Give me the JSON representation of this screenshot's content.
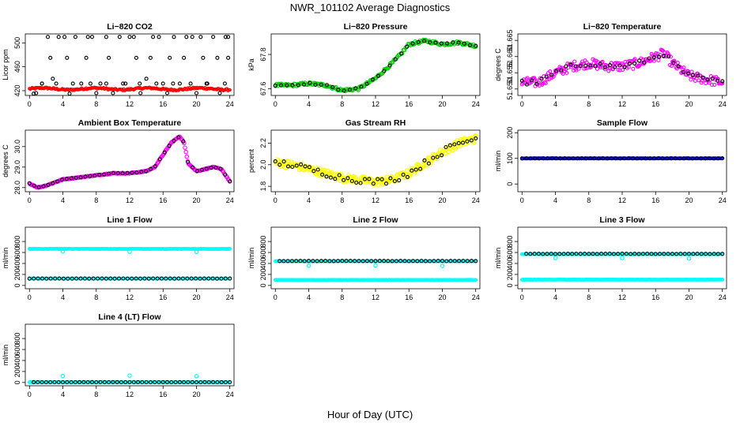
{
  "page": {
    "title": "NWR_101102  Average Diagnostics",
    "xlabel": "Hour of Day (UTC)"
  },
  "colors": {
    "black": "#000000",
    "red": "#ff0000",
    "green": "#00cc00",
    "magenta": "#ff00ff",
    "yellow": "#ffff00",
    "cyan": "#00ffff",
    "blue": "#0000ff"
  },
  "chart_data": [
    {
      "id": "li820-co2",
      "type": "scatter",
      "title": "Li−820 CO2",
      "ylabel": "Licor ppm",
      "xlim": [
        -0.5,
        24.5
      ],
      "xticks": [
        "0",
        "4",
        "8",
        "12",
        "16",
        "20",
        "24"
      ],
      "ylim": [
        412,
        515
      ],
      "yticks": [
        {
          "v": 420,
          "label": "420"
        },
        {
          "v": 460,
          "label": "460"
        },
        {
          "v": 500,
          "label": "500"
        }
      ],
      "series": [
        {
          "name": "continuous",
          "color": "#ff0000",
          "kind": "dense",
          "x0": 0,
          "x1": 24,
          "base": 423,
          "amp": 1.5,
          "noise": 1.5,
          "n": 220,
          "r": 1.6
        },
        {
          "name": "ring",
          "color": "#000000",
          "kind": "points",
          "r": 2,
          "x": [
            0.5,
            1.5,
            2.2,
            2.8,
            3.5,
            4.2,
            4.8,
            5.5,
            6.2,
            7,
            7.5,
            8,
            8.5,
            9.2,
            10,
            10.8,
            11.5,
            12,
            12.5,
            13.3,
            14,
            14.8,
            15.5,
            16,
            16.5,
            17.3,
            18,
            18.8,
            19.5,
            20,
            20.5,
            21.2,
            22,
            22.8,
            23.5,
            23.8,
            0.8,
            2.5,
            4.5,
            6.8,
            9.5,
            12.8,
            14.5,
            16.8,
            18.5,
            20.8,
            22.5,
            23.8,
            1.5,
            3.2,
            5.2,
            7.3,
            9.2,
            11.2,
            13.2,
            15.2,
            17.2,
            19.3,
            21.3,
            23.4
          ],
          "y": [
            415,
            432,
            510,
            440,
            510,
            510,
            415,
            510,
            432,
            510,
            510,
            416,
            432,
            510,
            416,
            510,
            432,
            510,
            510,
            416,
            440,
            510,
            510,
            432,
            416,
            510,
            432,
            510,
            510,
            416,
            510,
            432,
            510,
            416,
            510,
            510,
            416,
            475,
            475,
            475,
            475,
            475,
            475,
            475,
            475,
            475,
            475,
            475,
            432,
            432,
            432,
            432,
            432,
            432,
            432,
            432,
            432,
            432,
            432,
            432
          ]
        }
      ]
    },
    {
      "id": "li820-pressure",
      "type": "scatter",
      "title": "Li−820 Pressure",
      "ylabel": "kPa",
      "xlim": [
        -0.5,
        24.5
      ],
      "xticks": [
        "0",
        "4",
        "8",
        "12",
        "16",
        "20",
        "24"
      ],
      "ylim": [
        67.56,
        67.92
      ],
      "yticks": [
        {
          "v": 67.6,
          "label": "67.6"
        },
        {
          "v": 67.8,
          "label": "67.8"
        }
      ],
      "series": [
        {
          "name": "continuous",
          "color": "#00cc00",
          "kind": "curve",
          "x": [
            0,
            2,
            4,
            6,
            8,
            10,
            12,
            14,
            15,
            16,
            18,
            20,
            22,
            24
          ],
          "y": [
            67.62,
            67.62,
            67.63,
            67.62,
            67.59,
            67.6,
            67.66,
            67.75,
            67.8,
            67.86,
            67.88,
            67.86,
            67.87,
            67.85
          ],
          "n": 170,
          "noise": 0.008,
          "r": 2.2
        },
        {
          "name": "hourly",
          "color": "#000000",
          "kind": "curve",
          "x": [
            0,
            2,
            4,
            6,
            8,
            10,
            12,
            14,
            15,
            16,
            18,
            20,
            22,
            24
          ],
          "y": [
            67.62,
            67.62,
            67.63,
            67.62,
            67.59,
            67.6,
            67.66,
            67.75,
            67.8,
            67.86,
            67.88,
            67.86,
            67.87,
            67.85
          ],
          "n": 36,
          "noise": 0.004,
          "r": 2
        }
      ]
    },
    {
      "id": "li820-temperature",
      "type": "scatter",
      "title": "Li−820 Temperature",
      "ylabel": "degrees C",
      "xlim": [
        -0.5,
        24.5
      ],
      "xticks": [
        "0",
        "4",
        "8",
        "12",
        "16",
        "20",
        "24"
      ],
      "ylim": [
        51.648,
        51.667
      ],
      "yticks": [
        {
          "v": 51.65,
          "label": "51.650"
        },
        {
          "v": 51.655,
          "label": "51.655"
        },
        {
          "v": 51.66,
          "label": "51.660"
        },
        {
          "v": 51.665,
          "label": "51.665"
        }
      ],
      "series": [
        {
          "name": "continuous",
          "color": "#ff00ff",
          "kind": "curve",
          "x": [
            0,
            2,
            4,
            6,
            8,
            10,
            12,
            14,
            16,
            17,
            18,
            19,
            20,
            22,
            24
          ],
          "y": [
            51.652,
            51.652,
            51.655,
            51.657,
            51.658,
            51.657,
            51.657,
            51.658,
            51.66,
            51.661,
            51.658,
            51.656,
            51.654,
            51.653,
            51.652
          ],
          "n": 230,
          "noise": 0.0015,
          "r": 2
        },
        {
          "name": "hourly",
          "color": "#000000",
          "kind": "curve",
          "x": [
            0,
            2,
            4,
            6,
            8,
            10,
            12,
            14,
            16,
            17,
            18,
            19,
            20,
            22,
            24
          ],
          "y": [
            51.652,
            51.652,
            51.655,
            51.657,
            51.658,
            51.657,
            51.657,
            51.658,
            51.66,
            51.661,
            51.658,
            51.656,
            51.654,
            51.653,
            51.652
          ],
          "n": 42,
          "noise": 0.0008,
          "r": 2
        }
      ]
    },
    {
      "id": "ambient-box-temperature",
      "type": "scatter",
      "title": "Ambient Box Temperature",
      "ylabel": "degrees C",
      "xlim": [
        -0.5,
        24.5
      ],
      "xticks": [
        "0",
        "4",
        "8",
        "12",
        "16",
        "20",
        "24"
      ],
      "ylim": [
        27.8,
        30.8
      ],
      "yticks": [
        {
          "v": 28,
          "label": "28.0"
        },
        {
          "v": 29,
          "label": "29.0"
        },
        {
          "v": 30,
          "label": "30.0"
        }
      ],
      "series": [
        {
          "name": "continuous",
          "color": "#ff00ff",
          "kind": "curve",
          "x": [
            0,
            1,
            2,
            4,
            6,
            8,
            10,
            12,
            14,
            15,
            16,
            17,
            18,
            18.5,
            19,
            20,
            21,
            22,
            23,
            24
          ],
          "y": [
            28.2,
            28.0,
            28.1,
            28.4,
            28.5,
            28.6,
            28.7,
            28.7,
            28.8,
            29.0,
            29.6,
            30.2,
            30.5,
            30.2,
            29.2,
            28.8,
            28.9,
            29.0,
            28.9,
            28.3
          ],
          "n": 220,
          "noise": 0.02,
          "r": 2.2
        },
        {
          "name": "hourly",
          "color": "#000000",
          "kind": "curve",
          "x": [
            0,
            1,
            2,
            4,
            6,
            8,
            10,
            12,
            14,
            15,
            16,
            17,
            18,
            18.5,
            19,
            20,
            21,
            22,
            23,
            24
          ],
          "y": [
            28.2,
            28.0,
            28.1,
            28.4,
            28.5,
            28.6,
            28.7,
            28.7,
            28.8,
            29.0,
            29.6,
            30.2,
            30.5,
            30.2,
            29.2,
            28.8,
            28.9,
            29.0,
            28.9,
            28.3
          ],
          "n": 44,
          "noise": 0.01,
          "r": 2
        }
      ]
    },
    {
      "id": "gas-stream-rh",
      "type": "scatter",
      "title": "Gas Stream RH",
      "ylabel": "percent",
      "xlim": [
        -0.5,
        24.5
      ],
      "xticks": [
        "0",
        "4",
        "8",
        "12",
        "16",
        "20",
        "24"
      ],
      "ylim": [
        1.75,
        2.32
      ],
      "yticks": [
        {
          "v": 1.8,
          "label": "1.8"
        },
        {
          "v": 2.0,
          "label": "2.0"
        },
        {
          "v": 2.2,
          "label": "2.2"
        }
      ],
      "series": [
        {
          "name": "continuous",
          "color": "#ffff00",
          "kind": "curve",
          "x": [
            0,
            2,
            4,
            6,
            8,
            10,
            12,
            14,
            16,
            18,
            20,
            22,
            24
          ],
          "y": [
            2.02,
            2.0,
            1.96,
            1.92,
            1.88,
            1.86,
            1.84,
            1.86,
            1.92,
            2.02,
            2.12,
            2.2,
            2.24
          ],
          "n": 260,
          "noise": 0.035,
          "r": 2.4
        },
        {
          "name": "hourly",
          "color": "#000000",
          "kind": "curve",
          "x": [
            0,
            2,
            4,
            6,
            8,
            10,
            12,
            14,
            16,
            18,
            20,
            22,
            24
          ],
          "y": [
            2.02,
            2.0,
            1.96,
            1.92,
            1.88,
            1.86,
            1.84,
            1.86,
            1.92,
            2.02,
            2.12,
            2.2,
            2.24
          ],
          "n": 48,
          "noise": 0.03,
          "r": 2
        }
      ]
    },
    {
      "id": "sample-flow",
      "type": "scatter",
      "title": "Sample Flow",
      "ylabel": "ml/min",
      "xlim": [
        -0.5,
        24.5
      ],
      "xticks": [
        "0",
        "4",
        "8",
        "12",
        "16",
        "20",
        "24"
      ],
      "ylim": [
        -30,
        210
      ],
      "yticks": [
        {
          "v": 0,
          "label": "0"
        },
        {
          "v": 100,
          "label": "100"
        },
        {
          "v": 200,
          "label": "200"
        }
      ],
      "series": [
        {
          "name": "continuous",
          "color": "#0000ff",
          "kind": "dense",
          "x0": 0,
          "x1": 24,
          "base": 100,
          "amp": 0,
          "noise": 0.6,
          "n": 240,
          "r": 1.8
        },
        {
          "name": "hourly",
          "color": "#000000",
          "kind": "dense",
          "x0": 0,
          "x1": 24,
          "base": 100,
          "amp": 0,
          "noise": 0.2,
          "n": 48,
          "r": 2
        }
      ]
    },
    {
      "id": "line-1-flow",
      "type": "scatter",
      "title": "Line 1 Flow",
      "ylabel": "ml/min",
      "xlim": [
        -0.5,
        24.5
      ],
      "xticks": [
        "0",
        "4",
        "8",
        "12",
        "16",
        "20",
        "24"
      ],
      "ylim": [
        -60,
        1060
      ],
      "yticks": [
        {
          "v": 0,
          "label": "0"
        },
        {
          "v": 200,
          "label": "200"
        },
        {
          "v": 400,
          "label": "400"
        },
        {
          "v": 600,
          "label": "600"
        },
        {
          "v": 800,
          "label": "800"
        }
      ],
      "series": [
        {
          "name": "continuous-high",
          "color": "#00ffff",
          "kind": "dense",
          "x0": 0,
          "x1": 24,
          "base": 665,
          "amp": 0,
          "noise": 3,
          "n": 240,
          "r": 1.8
        },
        {
          "name": "continuous-low",
          "color": "#00ffff",
          "kind": "dense",
          "x0": 0,
          "x1": 24,
          "base": 125,
          "amp": 0,
          "noise": 2,
          "n": 120,
          "r": 1.8
        },
        {
          "name": "hourly-low",
          "color": "#000000",
          "kind": "dense",
          "x0": 0,
          "x1": 24,
          "base": 125,
          "amp": 0,
          "noise": 1,
          "n": 48,
          "r": 2
        },
        {
          "name": "outliers",
          "color": "#00ffff",
          "kind": "points",
          "x": [
            4,
            12,
            20
          ],
          "y": [
            620,
            615,
            610
          ],
          "r": 2.2
        }
      ]
    },
    {
      "id": "line-2-flow",
      "type": "scatter",
      "title": "Line 2 Flow",
      "ylabel": "ml/min",
      "xlim": [
        -0.5,
        24.5
      ],
      "xticks": [
        "0",
        "4",
        "8",
        "12",
        "16",
        "20",
        "24"
      ],
      "ylim": [
        -60,
        1060
      ],
      "yticks": [
        {
          "v": 0,
          "label": "0"
        },
        {
          "v": 200,
          "label": "200"
        },
        {
          "v": 400,
          "label": "400"
        },
        {
          "v": 600,
          "label": "600"
        },
        {
          "v": 800,
          "label": "800"
        }
      ],
      "series": [
        {
          "name": "continuous-high",
          "color": "#00ffff",
          "kind": "dense",
          "x0": 0,
          "x1": 24,
          "base": 440,
          "amp": 0,
          "noise": 3,
          "n": 200,
          "r": 1.8
        },
        {
          "name": "hourly-high",
          "color": "#000000",
          "kind": "dense",
          "x0": 0.5,
          "x1": 24,
          "base": 445,
          "amp": 0,
          "noise": 2,
          "n": 48,
          "r": 2
        },
        {
          "name": "continuous-low",
          "color": "#00ffff",
          "kind": "dense",
          "x0": 0,
          "x1": 24,
          "base": 100,
          "amp": 0,
          "noise": 2,
          "n": 220,
          "r": 1.8
        },
        {
          "name": "outliers",
          "color": "#00ffff",
          "kind": "points",
          "x": [
            4,
            12,
            20
          ],
          "y": [
            360,
            365,
            355
          ],
          "r": 2.2
        }
      ]
    },
    {
      "id": "line-3-flow",
      "type": "scatter",
      "title": "Line 3 Flow",
      "ylabel": "ml/min",
      "xlim": [
        -0.5,
        24.5
      ],
      "xticks": [
        "0",
        "4",
        "8",
        "12",
        "16",
        "20",
        "24"
      ],
      "ylim": [
        -60,
        1060
      ],
      "yticks": [
        {
          "v": 0,
          "label": "0"
        },
        {
          "v": 200,
          "label": "200"
        },
        {
          "v": 400,
          "label": "400"
        },
        {
          "v": 600,
          "label": "600"
        },
        {
          "v": 800,
          "label": "800"
        }
      ],
      "series": [
        {
          "name": "continuous-high",
          "color": "#00ffff",
          "kind": "dense",
          "x0": 0,
          "x1": 24,
          "base": 570,
          "amp": 0,
          "noise": 3,
          "n": 200,
          "r": 1.8
        },
        {
          "name": "hourly-high",
          "color": "#000000",
          "kind": "dense",
          "x0": 0.5,
          "x1": 24,
          "base": 575,
          "amp": 0,
          "noise": 2,
          "n": 48,
          "r": 2
        },
        {
          "name": "continuous-low",
          "color": "#00ffff",
          "kind": "dense",
          "x0": 0,
          "x1": 24,
          "base": 105,
          "amp": 0,
          "noise": 2,
          "n": 220,
          "r": 1.8
        },
        {
          "name": "outliers",
          "color": "#00ffff",
          "kind": "points",
          "x": [
            4,
            12,
            20
          ],
          "y": [
            500,
            500,
            490
          ],
          "r": 2.2
        }
      ]
    },
    {
      "id": "line-4-flow",
      "type": "scatter",
      "title": "Line 4 (LT) Flow",
      "ylabel": "ml/min",
      "xlim": [
        -0.5,
        24.5
      ],
      "xticks": [
        "0",
        "4",
        "8",
        "12",
        "16",
        "20",
        "24"
      ],
      "ylim": [
        -60,
        1060
      ],
      "yticks": [
        {
          "v": 0,
          "label": "0"
        },
        {
          "v": 200,
          "label": "200"
        },
        {
          "v": 400,
          "label": "400"
        },
        {
          "v": 600,
          "label": "600"
        },
        {
          "v": 800,
          "label": "800"
        }
      ],
      "series": [
        {
          "name": "continuous",
          "color": "#00ffff",
          "kind": "dense",
          "x0": 0,
          "x1": 24,
          "base": 5,
          "amp": 0,
          "noise": 2,
          "n": 200,
          "r": 1.8
        },
        {
          "name": "hourly",
          "color": "#000000",
          "kind": "dense",
          "x0": 0.5,
          "x1": 24,
          "base": 5,
          "amp": 0,
          "noise": 1,
          "n": 48,
          "r": 2
        },
        {
          "name": "outliers",
          "color": "#00ffff",
          "kind": "points",
          "x": [
            4,
            12,
            20
          ],
          "y": [
            120,
            125,
            115
          ],
          "r": 2.2
        }
      ]
    }
  ]
}
